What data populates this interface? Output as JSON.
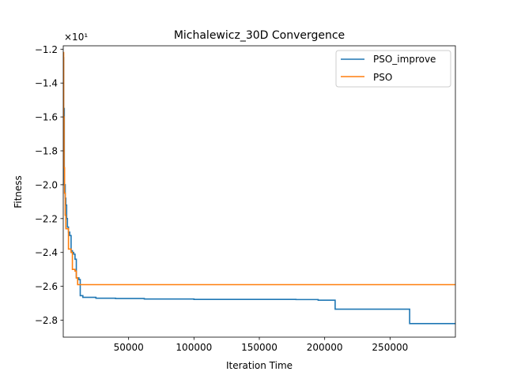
{
  "chart_data": {
    "type": "line",
    "title": "Michalewicz_30D Convergence",
    "xlabel": "Iteration Time",
    "ylabel": "Fitness",
    "y_offset_text": "×10¹",
    "xlim": [
      0,
      300000
    ],
    "ylim": [
      -2.9,
      -1.18
    ],
    "xticks": [
      50000,
      100000,
      150000,
      200000,
      250000
    ],
    "xtick_labels": [
      "50000",
      "100000",
      "150000",
      "200000",
      "250000"
    ],
    "yticks": [
      -2.8,
      -2.6,
      -2.4,
      -2.2,
      -2.0,
      -1.8,
      -1.6,
      -1.4,
      -1.2
    ],
    "ytick_labels": [
      "−2.8",
      "−2.6",
      "−2.4",
      "−2.2",
      "−2.0",
      "−1.8",
      "−1.6",
      "−1.4",
      "−1.2"
    ],
    "grid": false,
    "legend_position": "top-right",
    "series": [
      {
        "name": "PSO_improve",
        "color": "#1f77b4",
        "step": true,
        "points": [
          [
            0,
            -1.25
          ],
          [
            300,
            -1.55
          ],
          [
            800,
            -2.0
          ],
          [
            1500,
            -2.08
          ],
          [
            2000,
            -2.12
          ],
          [
            2600,
            -2.2
          ],
          [
            3200,
            -2.25
          ],
          [
            4000,
            -2.28
          ],
          [
            5000,
            -2.3
          ],
          [
            6000,
            -2.39
          ],
          [
            7000,
            -2.4
          ],
          [
            8000,
            -2.41
          ],
          [
            9000,
            -2.44
          ],
          [
            10000,
            -2.55
          ],
          [
            12000,
            -2.56
          ],
          [
            13000,
            -2.655
          ],
          [
            15000,
            -2.665
          ],
          [
            25000,
            -2.67
          ],
          [
            40000,
            -2.672
          ],
          [
            62000,
            -2.675
          ],
          [
            100000,
            -2.677
          ],
          [
            178000,
            -2.678
          ],
          [
            195000,
            -2.682
          ],
          [
            208000,
            -2.735
          ],
          [
            265000,
            -2.82
          ],
          [
            300000,
            -2.82
          ]
        ]
      },
      {
        "name": "PSO",
        "color": "#ff7f0e",
        "step": true,
        "points": [
          [
            0,
            -1.22
          ],
          [
            300,
            -1.6
          ],
          [
            600,
            -1.9
          ],
          [
            1000,
            -2.05
          ],
          [
            1500,
            -2.18
          ],
          [
            2000,
            -2.26
          ],
          [
            4000,
            -2.38
          ],
          [
            6000,
            -2.4
          ],
          [
            7000,
            -2.5
          ],
          [
            9000,
            -2.51
          ],
          [
            10000,
            -2.55
          ],
          [
            11000,
            -2.59
          ],
          [
            300000,
            -2.59
          ]
        ]
      }
    ]
  }
}
